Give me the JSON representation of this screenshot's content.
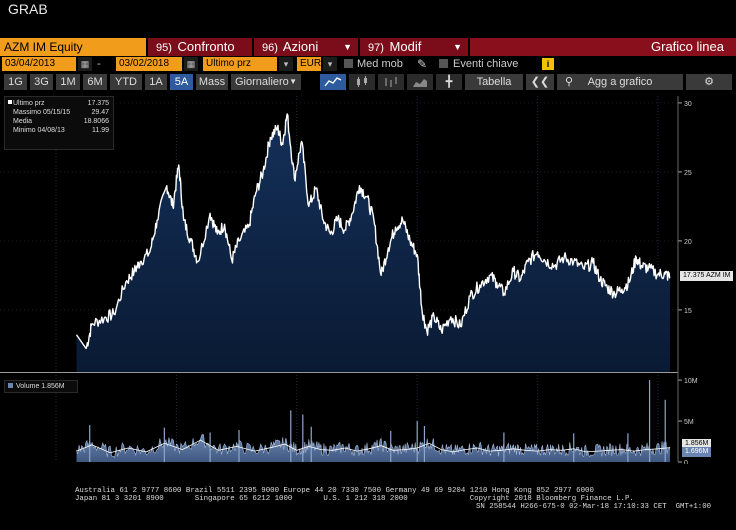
{
  "window": {
    "title": "GRAB"
  },
  "toolbar": {
    "ticker": "AZM IM Equity",
    "compare": {
      "num": "95)",
      "label": "Confronto"
    },
    "actions": {
      "num": "96)",
      "label": "Azioni"
    },
    "modify": {
      "num": "97)",
      "label": "Modif"
    },
    "chart_label": "Grafico linea"
  },
  "controls": {
    "start_date": "03/04/2013",
    "dash": "-",
    "end_date": "03/02/2018",
    "field": "Ultimo prz",
    "currency": "EUR",
    "moving_avg": "Med mob",
    "key_events": "Eventi chiave",
    "info_icon": "i"
  },
  "periods": {
    "buttons": [
      "1G",
      "3G",
      "1M",
      "6M",
      "YTD",
      "1A",
      "5A",
      "Mass"
    ],
    "active": "5A",
    "frequency": "Giornaliero",
    "table": "Tabella",
    "add_to_chart": "Agg a grafico"
  },
  "legend": {
    "rows": [
      {
        "key": "Ultimo prz",
        "value": "17.375"
      },
      {
        "key": "Massimo 05/15/15",
        "value": "29.47"
      },
      {
        "key": "Media",
        "value": "18.8066"
      },
      {
        "key": "Minimo 04/08/13",
        "value": "11.99"
      }
    ]
  },
  "volume_legend": "Volume 1.856M",
  "price_tag": "17.375 AZM IM",
  "volume_tags": [
    "1.856M",
    "1.696M"
  ],
  "chart_data": {
    "type": "area",
    "x_ticks": [
      "2013",
      "2014",
      "2015",
      "2016",
      "2017",
      "2018"
    ],
    "price_axis": {
      "ticks": [
        "30",
        "25",
        "20",
        "15"
      ],
      "range": [
        10.5,
        30.5
      ]
    },
    "volume_axis": {
      "ticks": [
        "10M",
        "5M",
        "0"
      ],
      "range": [
        0,
        10.5
      ]
    },
    "price_series": [
      [
        2013.17,
        13.2
      ],
      [
        2013.25,
        12.2
      ],
      [
        2013.3,
        14.0
      ],
      [
        2013.4,
        14.4
      ],
      [
        2013.48,
        14.7
      ],
      [
        2013.58,
        17.0
      ],
      [
        2013.65,
        17.8
      ],
      [
        2013.7,
        18.5
      ],
      [
        2013.78,
        19.2
      ],
      [
        2013.84,
        21.5
      ],
      [
        2013.92,
        24.0
      ],
      [
        2013.97,
        22.5
      ],
      [
        2014.02,
        25.5
      ],
      [
        2014.06,
        21.5
      ],
      [
        2014.12,
        20.0
      ],
      [
        2014.18,
        18.5
      ],
      [
        2014.28,
        22.0
      ],
      [
        2014.34,
        20.5
      ],
      [
        2014.4,
        21.2
      ],
      [
        2014.46,
        18.6
      ],
      [
        2014.52,
        20.0
      ],
      [
        2014.6,
        21.0
      ],
      [
        2014.66,
        23.5
      ],
      [
        2014.72,
        25.0
      ],
      [
        2014.78,
        27.5
      ],
      [
        2014.84,
        28.2
      ],
      [
        2014.88,
        27.0
      ],
      [
        2014.92,
        29.2
      ],
      [
        2014.98,
        24.5
      ],
      [
        2015.04,
        27.2
      ],
      [
        2015.1,
        22.5
      ],
      [
        2015.16,
        23.8
      ],
      [
        2015.22,
        21.5
      ],
      [
        2015.28,
        20.5
      ],
      [
        2015.34,
        21.6
      ],
      [
        2015.4,
        20.8
      ],
      [
        2015.46,
        22.0
      ],
      [
        2015.52,
        24.0
      ],
      [
        2015.58,
        23.2
      ],
      [
        2015.64,
        21.5
      ],
      [
        2015.7,
        17.5
      ],
      [
        2015.76,
        19.5
      ],
      [
        2015.82,
        21.0
      ],
      [
        2015.88,
        21.5
      ],
      [
        2015.94,
        20.0
      ],
      [
        2016.0,
        19.0
      ],
      [
        2016.04,
        15.0
      ],
      [
        2016.08,
        13.5
      ],
      [
        2016.14,
        14.5
      ],
      [
        2016.2,
        13.5
      ],
      [
        2016.28,
        14.5
      ],
      [
        2016.36,
        13.8
      ],
      [
        2016.44,
        16.0
      ],
      [
        2016.52,
        16.8
      ],
      [
        2016.6,
        17.5
      ],
      [
        2016.66,
        17.0
      ],
      [
        2016.72,
        16.2
      ],
      [
        2016.8,
        17.8
      ],
      [
        2016.86,
        17.2
      ],
      [
        2016.92,
        18.5
      ],
      [
        2017.0,
        19.2
      ],
      [
        2017.06,
        18.6
      ],
      [
        2017.14,
        18.2
      ],
      [
        2017.22,
        18.8
      ],
      [
        2017.3,
        18.5
      ],
      [
        2017.38,
        18.0
      ],
      [
        2017.46,
        18.4
      ],
      [
        2017.52,
        17.2
      ],
      [
        2017.58,
        16.6
      ],
      [
        2017.64,
        16.2
      ],
      [
        2017.7,
        16.5
      ],
      [
        2017.76,
        17.0
      ],
      [
        2017.82,
        18.8
      ],
      [
        2017.86,
        18.2
      ],
      [
        2017.92,
        18.0
      ],
      [
        2018.0,
        17.6
      ],
      [
        2018.06,
        17.6
      ],
      [
        2018.1,
        17.375
      ]
    ],
    "volume_series": [
      [
        2013.17,
        1.4
      ],
      [
        2013.3,
        2.2
      ],
      [
        2013.45,
        1.2
      ],
      [
        2013.6,
        1.8
      ],
      [
        2013.75,
        1.3
      ],
      [
        2013.9,
        2.4
      ],
      [
        2014.05,
        1.6
      ],
      [
        2014.2,
        2.8
      ],
      [
        2014.35,
        1.5
      ],
      [
        2014.5,
        2.0
      ],
      [
        2014.65,
        1.4
      ],
      [
        2014.8,
        1.9
      ],
      [
        2014.9,
        2.3
      ],
      [
        2015.0,
        1.5
      ],
      [
        2015.1,
        2.0
      ],
      [
        2015.2,
        1.6
      ],
      [
        2015.3,
        1.5
      ],
      [
        2015.4,
        1.8
      ],
      [
        2015.5,
        1.4
      ],
      [
        2015.6,
        1.7
      ],
      [
        2015.7,
        2.1
      ],
      [
        2015.8,
        1.5
      ],
      [
        2015.9,
        1.6
      ],
      [
        2016.0,
        1.8
      ],
      [
        2016.1,
        2.4
      ],
      [
        2016.2,
        1.6
      ],
      [
        2016.3,
        1.3
      ],
      [
        2016.4,
        1.6
      ],
      [
        2016.5,
        1.8
      ],
      [
        2016.6,
        1.4
      ],
      [
        2016.7,
        1.5
      ],
      [
        2016.8,
        1.7
      ],
      [
        2016.9,
        1.5
      ],
      [
        2017.0,
        1.4
      ],
      [
        2017.1,
        1.6
      ],
      [
        2017.2,
        1.5
      ],
      [
        2017.3,
        1.7
      ],
      [
        2017.4,
        1.3
      ],
      [
        2017.5,
        1.4
      ],
      [
        2017.6,
        1.5
      ],
      [
        2017.7,
        1.6
      ],
      [
        2017.8,
        1.4
      ],
      [
        2017.9,
        1.6
      ],
      [
        2018.0,
        1.7
      ],
      [
        2018.1,
        1.856
      ]
    ],
    "volume_spikes": [
      [
        2013.28,
        4.5
      ],
      [
        2013.9,
        4.2
      ],
      [
        2014.28,
        3.6
      ],
      [
        2014.52,
        3.9
      ],
      [
        2014.95,
        6.3
      ],
      [
        2015.05,
        5.8
      ],
      [
        2015.12,
        4.3
      ],
      [
        2015.78,
        3.8
      ],
      [
        2016.0,
        5.0
      ],
      [
        2016.06,
        4.4
      ],
      [
        2016.72,
        3.6
      ],
      [
        2017.3,
        3.5
      ],
      [
        2017.75,
        3.5
      ],
      [
        2017.93,
        10.0
      ],
      [
        2018.06,
        7.6
      ]
    ]
  },
  "footer": {
    "line1": "Australia 61 2 9777 8600 Brazil 5511 2395 9000 Europe 44 20 7330 7500 Germany 49 69 9204 1210 Hong Kong 852 2977 6000",
    "line2": "Japan 81 3 3201 8900       Singapore 65 6212 1000       U.S. 1 212 318 2000              Copyright 2018 Bloomberg Finance L.P.",
    "line3": "SN 258544 H266-675-0 02-Mar-18 17:10:33 CET  GMT+1:00"
  }
}
